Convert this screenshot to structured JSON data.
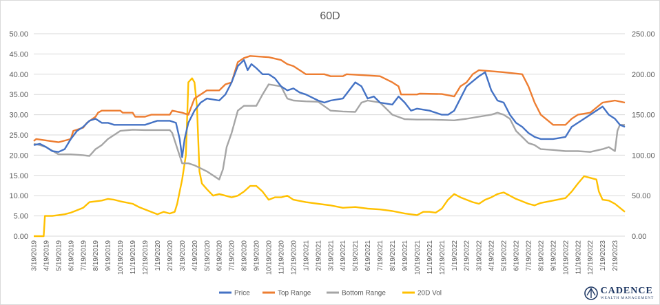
{
  "chart_data": {
    "type": "line",
    "title": "60D",
    "xlabel": "",
    "ylabel": "",
    "y_left": {
      "lim": [
        0,
        50
      ],
      "ticks": [
        "0.00",
        "5.00",
        "10.00",
        "15.00",
        "20.00",
        "25.00",
        "30.00",
        "35.00",
        "40.00",
        "45.00",
        "50.00"
      ]
    },
    "y_right": {
      "lim": [
        0,
        250
      ],
      "ticks": [
        "0.00",
        "50.00",
        "100.00",
        "150.00",
        "200.00",
        "250.00"
      ]
    },
    "x_ticks": [
      "3/19/2019",
      "4/19/2019",
      "5/19/2019",
      "6/19/2019",
      "7/19/2019",
      "8/19/2019",
      "9/19/2019",
      "10/19/2019",
      "11/19/2019",
      "12/19/2019",
      "1/19/2020",
      "2/19/2020",
      "3/19/2020",
      "4/19/2020",
      "5/19/2020",
      "6/19/2020",
      "7/19/2020",
      "8/19/2020",
      "9/19/2020",
      "10/19/2020",
      "11/19/2020",
      "12/19/2020",
      "1/19/2021",
      "2/19/2021",
      "3/19/2021",
      "4/19/2021",
      "5/19/2021",
      "6/19/2021",
      "7/19/2021",
      "8/19/2021",
      "9/19/2021",
      "10/19/2021",
      "11/19/2021",
      "12/19/2021",
      "1/19/2022",
      "2/19/2022",
      "3/19/2022",
      "4/19/2022",
      "5/19/2022",
      "6/19/2022",
      "7/19/2022",
      "8/19/2022",
      "9/19/2022",
      "10/19/2022",
      "11/19/2022",
      "12/19/2022",
      "1/19/2023",
      "2/19/2023"
    ],
    "x_range_months": [
      0,
      47.8
    ],
    "grid": true,
    "legend_position": "bottom",
    "series": [
      {
        "name": "Price",
        "axis": "left",
        "color": "#4472c4",
        "points": [
          [
            0,
            22.5
          ],
          [
            0.5,
            22.8
          ],
          [
            1,
            22.0
          ],
          [
            1.5,
            21.0
          ],
          [
            2,
            20.8
          ],
          [
            2.5,
            21.5
          ],
          [
            3,
            24
          ],
          [
            3.5,
            26
          ],
          [
            4,
            27
          ],
          [
            4.5,
            28.5
          ],
          [
            5,
            29
          ],
          [
            5.5,
            28
          ],
          [
            6,
            28
          ],
          [
            6.5,
            27.5
          ],
          [
            7,
            27.5
          ],
          [
            8,
            27.5
          ],
          [
            9,
            27.5
          ],
          [
            10,
            28.5
          ],
          [
            11,
            28.5
          ],
          [
            11.5,
            28
          ],
          [
            11.8,
            24
          ],
          [
            12,
            19.5
          ],
          [
            12.2,
            24
          ],
          [
            12.5,
            28
          ],
          [
            13,
            31
          ],
          [
            13.5,
            33
          ],
          [
            14,
            34
          ],
          [
            15,
            33.5
          ],
          [
            15.5,
            35
          ],
          [
            16,
            38
          ],
          [
            16.5,
            42
          ],
          [
            17,
            43.5
          ],
          [
            17.3,
            41
          ],
          [
            17.6,
            42.5
          ],
          [
            18,
            41.5
          ],
          [
            18.5,
            40
          ],
          [
            19,
            40
          ],
          [
            19.5,
            39
          ],
          [
            20,
            37
          ],
          [
            20.5,
            36
          ],
          [
            21,
            36.5
          ],
          [
            21.5,
            35.5
          ],
          [
            22,
            35
          ],
          [
            23,
            33.5
          ],
          [
            23.5,
            33
          ],
          [
            24,
            33.5
          ],
          [
            25,
            34
          ],
          [
            26,
            38
          ],
          [
            26.5,
            37
          ],
          [
            27,
            34
          ],
          [
            27.5,
            34.5
          ],
          [
            28,
            33
          ],
          [
            29,
            32.5
          ],
          [
            29.5,
            34.5
          ],
          [
            30,
            33
          ],
          [
            30.5,
            31
          ],
          [
            31,
            31.5
          ],
          [
            32,
            31
          ],
          [
            33,
            30
          ],
          [
            33.5,
            30
          ],
          [
            34,
            31
          ],
          [
            35,
            37
          ],
          [
            36,
            39.5
          ],
          [
            36.5,
            40.5
          ],
          [
            37,
            36
          ],
          [
            37.5,
            33.5
          ],
          [
            38,
            33
          ],
          [
            38.5,
            30
          ],
          [
            39,
            28
          ],
          [
            39.5,
            27
          ],
          [
            40,
            25.5
          ],
          [
            40.5,
            24.5
          ],
          [
            41,
            24
          ],
          [
            42,
            24
          ],
          [
            43,
            24.5
          ],
          [
            43.5,
            27
          ],
          [
            44,
            28
          ],
          [
            44.5,
            29
          ],
          [
            45,
            30
          ],
          [
            46,
            32
          ],
          [
            46.5,
            30
          ],
          [
            47,
            29
          ],
          [
            47.4,
            27.5
          ],
          [
            47.8,
            27
          ]
        ]
      },
      {
        "name": "Top Range",
        "axis": "left",
        "color": "#ed7d31",
        "points": [
          [
            0,
            23.5
          ],
          [
            0.2,
            24
          ],
          [
            2,
            23.2
          ],
          [
            3,
            24
          ],
          [
            3.2,
            26
          ],
          [
            4,
            26.8
          ],
          [
            4.3,
            28
          ],
          [
            5,
            29.5
          ],
          [
            5.2,
            30.5
          ],
          [
            5.5,
            31
          ],
          [
            7,
            31
          ],
          [
            7.2,
            30.5
          ],
          [
            8,
            30.5
          ],
          [
            8.2,
            29.5
          ],
          [
            9,
            29.5
          ],
          [
            9.5,
            30
          ],
          [
            11,
            30
          ],
          [
            11.2,
            31
          ],
          [
            12,
            30.5
          ],
          [
            12.5,
            30
          ],
          [
            13,
            34
          ],
          [
            14,
            36
          ],
          [
            15,
            36
          ],
          [
            15.5,
            37.5
          ],
          [
            16,
            38
          ],
          [
            16.5,
            43
          ],
          [
            17,
            44
          ],
          [
            17.5,
            44.5
          ],
          [
            19,
            44.2
          ],
          [
            20,
            43.5
          ],
          [
            20.5,
            42.5
          ],
          [
            21,
            42
          ],
          [
            22,
            40
          ],
          [
            23.5,
            40
          ],
          [
            24,
            39.5
          ],
          [
            25,
            39.5
          ],
          [
            25.3,
            40
          ],
          [
            27,
            39.7
          ],
          [
            28,
            39.5
          ],
          [
            29,
            38
          ],
          [
            29.5,
            37
          ],
          [
            29.7,
            35
          ],
          [
            31,
            35
          ],
          [
            31.2,
            35.2
          ],
          [
            33,
            35.1
          ],
          [
            34,
            34.5
          ],
          [
            34.5,
            37
          ],
          [
            35,
            38
          ],
          [
            35.5,
            40
          ],
          [
            36,
            41
          ],
          [
            38,
            40.5
          ],
          [
            39.5,
            40
          ],
          [
            40,
            37
          ],
          [
            40.5,
            33
          ],
          [
            41,
            30
          ],
          [
            42,
            27.5
          ],
          [
            43,
            27.5
          ],
          [
            43.5,
            29
          ],
          [
            44,
            30
          ],
          [
            45,
            30.5
          ],
          [
            46,
            33
          ],
          [
            47,
            33.5
          ],
          [
            47.8,
            33
          ]
        ]
      },
      {
        "name": "Bottom Range",
        "axis": "left",
        "color": "#a5a5a5",
        "points": [
          [
            0,
            22.8
          ],
          [
            0.5,
            22.5
          ],
          [
            1,
            22
          ],
          [
            2,
            20.2
          ],
          [
            3,
            20.2
          ],
          [
            4,
            20
          ],
          [
            4.5,
            19.8
          ],
          [
            5,
            21.5
          ],
          [
            5.5,
            22.5
          ],
          [
            6,
            24
          ],
          [
            6.5,
            25
          ],
          [
            7,
            26
          ],
          [
            8,
            26.3
          ],
          [
            9,
            26.2
          ],
          [
            10,
            26.2
          ],
          [
            11,
            26.2
          ],
          [
            11.2,
            25.5
          ],
          [
            12,
            18
          ],
          [
            12.5,
            18
          ],
          [
            13,
            17.5
          ],
          [
            14,
            16
          ],
          [
            15,
            14
          ],
          [
            15.3,
            16.5
          ],
          [
            15.6,
            22
          ],
          [
            16,
            25.5
          ],
          [
            16.5,
            31
          ],
          [
            17,
            32.2
          ],
          [
            18,
            32.2
          ],
          [
            18.5,
            35
          ],
          [
            19,
            37.5
          ],
          [
            20,
            37
          ],
          [
            20.5,
            34
          ],
          [
            21,
            33.5
          ],
          [
            22,
            33.3
          ],
          [
            23,
            33.2
          ],
          [
            24,
            31
          ],
          [
            25,
            30.8
          ],
          [
            26,
            30.7
          ],
          [
            26.5,
            33
          ],
          [
            27,
            33.5
          ],
          [
            28,
            33
          ],
          [
            29,
            30
          ],
          [
            30,
            28.9
          ],
          [
            31,
            28.8
          ],
          [
            32,
            28.8
          ],
          [
            33,
            28.7
          ],
          [
            34,
            28.6
          ],
          [
            35,
            29
          ],
          [
            36,
            29.5
          ],
          [
            37,
            30
          ],
          [
            37.5,
            30.5
          ],
          [
            38,
            30
          ],
          [
            38.5,
            29
          ],
          [
            39,
            26
          ],
          [
            40,
            23
          ],
          [
            40.5,
            22.5
          ],
          [
            41,
            21.5
          ],
          [
            42,
            21.3
          ],
          [
            43,
            21
          ],
          [
            44,
            21
          ],
          [
            45,
            20.8
          ],
          [
            46,
            21.5
          ],
          [
            46.5,
            22
          ],
          [
            47,
            21
          ],
          [
            47.2,
            26
          ],
          [
            47.4,
            27.5
          ],
          [
            47.8,
            27.5
          ]
        ]
      },
      {
        "name": "20D Vol",
        "axis": "right",
        "color": "#ffc000",
        "points": [
          [
            0,
            0
          ],
          [
            0.8,
            0
          ],
          [
            0.9,
            25
          ],
          [
            1.5,
            25
          ],
          [
            2,
            26
          ],
          [
            2.5,
            27
          ],
          [
            3,
            29
          ],
          [
            3.5,
            32
          ],
          [
            4,
            35
          ],
          [
            4.5,
            42
          ],
          [
            5,
            43
          ],
          [
            5.5,
            44
          ],
          [
            6,
            46
          ],
          [
            6.5,
            45
          ],
          [
            7,
            43
          ],
          [
            8,
            40
          ],
          [
            8.5,
            36
          ],
          [
            9,
            33
          ],
          [
            9.5,
            30
          ],
          [
            10,
            27
          ],
          [
            10.5,
            30
          ],
          [
            11,
            28
          ],
          [
            11.4,
            30
          ],
          [
            11.6,
            40
          ],
          [
            11.8,
            55
          ],
          [
            12,
            70
          ],
          [
            12.3,
            100
          ],
          [
            12.5,
            190
          ],
          [
            12.8,
            195
          ],
          [
            13,
            190
          ],
          [
            13.2,
            160
          ],
          [
            13.4,
            80
          ],
          [
            13.6,
            65
          ],
          [
            14,
            58
          ],
          [
            14.5,
            50
          ],
          [
            15,
            52
          ],
          [
            15.5,
            50
          ],
          [
            16,
            48
          ],
          [
            16.5,
            50
          ],
          [
            17,
            55
          ],
          [
            17.5,
            62
          ],
          [
            18,
            62
          ],
          [
            18.5,
            55
          ],
          [
            19,
            45
          ],
          [
            19.5,
            48
          ],
          [
            20,
            48
          ],
          [
            20.5,
            50
          ],
          [
            21,
            45
          ],
          [
            22,
            42
          ],
          [
            23,
            40
          ],
          [
            24,
            38
          ],
          [
            25,
            35
          ],
          [
            26,
            36
          ],
          [
            27,
            34
          ],
          [
            28,
            33
          ],
          [
            29,
            31
          ],
          [
            30,
            28
          ],
          [
            31,
            26
          ],
          [
            31.5,
            30
          ],
          [
            32,
            30
          ],
          [
            32.5,
            29
          ],
          [
            33,
            34
          ],
          [
            33.5,
            45
          ],
          [
            34,
            52
          ],
          [
            34.5,
            48
          ],
          [
            35,
            45
          ],
          [
            35.5,
            42
          ],
          [
            36,
            40
          ],
          [
            36.5,
            45
          ],
          [
            37,
            48
          ],
          [
            37.5,
            52
          ],
          [
            38,
            54
          ],
          [
            38.5,
            50
          ],
          [
            39,
            46
          ],
          [
            39.5,
            43
          ],
          [
            40,
            40
          ],
          [
            40.5,
            38
          ],
          [
            41,
            41
          ],
          [
            42,
            44
          ],
          [
            43,
            47
          ],
          [
            43.5,
            55
          ],
          [
            44,
            65
          ],
          [
            44.5,
            74
          ],
          [
            45,
            72
          ],
          [
            45.5,
            70
          ],
          [
            45.7,
            55
          ],
          [
            46,
            45
          ],
          [
            46.5,
            44
          ],
          [
            47,
            40
          ],
          [
            47.4,
            35
          ],
          [
            47.8,
            30
          ]
        ]
      }
    ]
  },
  "logo": {
    "name": "CADENCE",
    "sub": "WEALTH MANAGEMENT"
  }
}
